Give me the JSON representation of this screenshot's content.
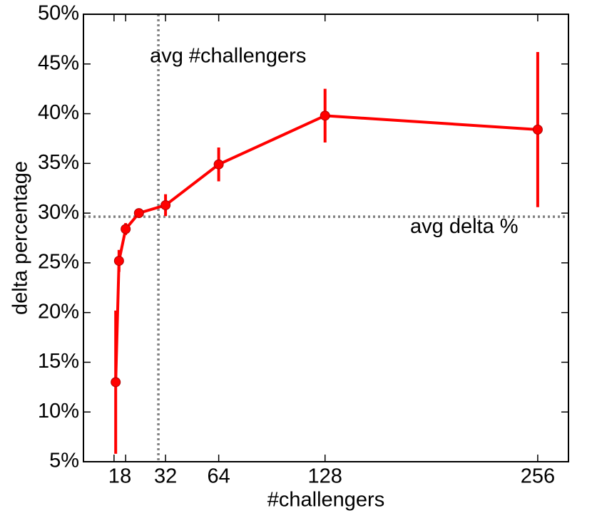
{
  "chart_data": {
    "type": "line",
    "x_label": "#challengers",
    "y_label": "delta percentage",
    "x": [
      2,
      4,
      8,
      16,
      32,
      64,
      128,
      256
    ],
    "series": [
      {
        "color": "#ff0000",
        "values": [
          13,
          25.2,
          28.4,
          30,
          30.8,
          34.9,
          39.8,
          38.4
        ],
        "errors": [
          7.2,
          1.1,
          0.6,
          0.4,
          1.1,
          1.7,
          2.7,
          7.8
        ]
      }
    ],
    "xlim": [
      -17.4,
      274.5
    ],
    "xticks": [
      1,
      8,
      32,
      64,
      128,
      256
    ],
    "ylim": [
      5,
      50
    ],
    "yticks": [
      {
        "value": 5,
        "label": "5%"
      },
      {
        "value": 10,
        "label": "10%"
      },
      {
        "value": 15,
        "label": "15%"
      },
      {
        "value": 20,
        "label": "20%"
      },
      {
        "value": 25,
        "label": "25%"
      },
      {
        "value": 30,
        "label": "30%"
      },
      {
        "value": 35,
        "label": "35%"
      },
      {
        "value": 40,
        "label": "40%"
      },
      {
        "value": 45,
        "label": "45%"
      },
      {
        "value": 50,
        "label": "50%"
      }
    ],
    "reference_lines": [
      {
        "axis": "x",
        "value": 27.7,
        "label": "avg #challengers"
      },
      {
        "axis": "y",
        "value": 29.64,
        "label": "avg delta %"
      }
    ]
  }
}
